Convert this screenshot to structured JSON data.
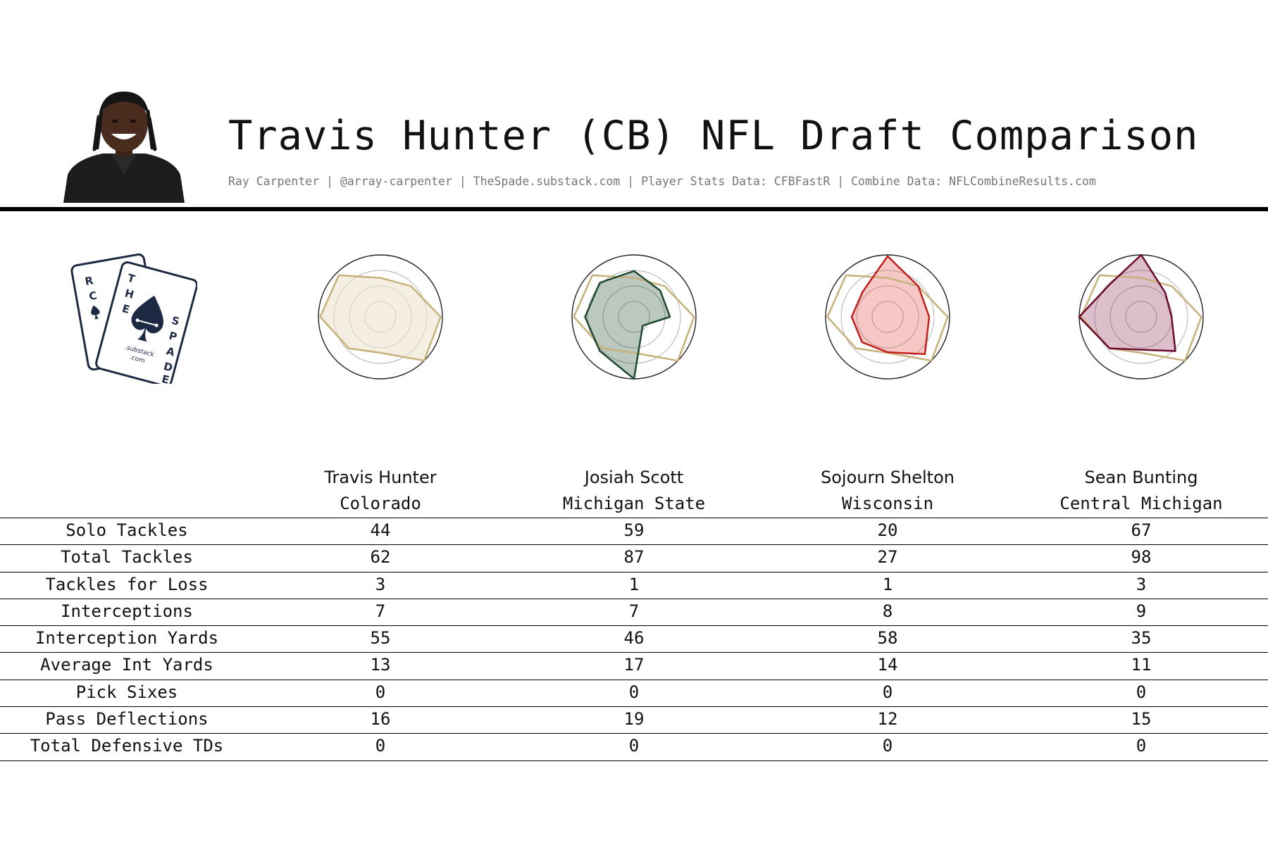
{
  "header": {
    "title": "Travis Hunter (CB) NFL Draft Comparison",
    "subtitle": "Ray Carpenter | @array-carpenter | TheSpade.substack.com | Player Stats Data: CFBFastR | Combine Data: NFLCombineResults.com"
  },
  "logo": {
    "letters_left": [
      "R",
      "C",
      "E"
    ],
    "letters_right": [
      "T",
      "H",
      "E",
      "S",
      "P",
      "A",
      "D",
      "E"
    ],
    "site_line1": ".substack",
    "site_line2": ".com"
  },
  "colors": {
    "base": "#c8b07a",
    "players": [
      "#c8b07a",
      "#1f4a2f",
      "#c41e1e",
      "#6b0a2e"
    ],
    "fills": [
      "#ede4cf",
      "#1f4a2f",
      "#e04a3f",
      "#8a2a4e"
    ]
  },
  "chart_data": {
    "type": "table",
    "columns": [
      {
        "name": "Travis Hunter",
        "school": "Colorado"
      },
      {
        "name": "Josiah Scott",
        "school": "Michigan State"
      },
      {
        "name": "Sojourn Shelton",
        "school": "Wisconsin"
      },
      {
        "name": "Sean Bunting",
        "school": "Central Michigan"
      }
    ],
    "rows": [
      {
        "label": "Solo Tackles",
        "values": [
          "44",
          "59",
          "20",
          "67"
        ]
      },
      {
        "label": "Total Tackles",
        "values": [
          "62",
          "87",
          "27",
          "98"
        ]
      },
      {
        "label": "Tackles for Loss",
        "values": [
          "3",
          "1",
          "1",
          "3"
        ]
      },
      {
        "label": "Interceptions",
        "values": [
          "7",
          "7",
          "8",
          "9"
        ]
      },
      {
        "label": "Interception Yards",
        "values": [
          "55",
          "46",
          "58",
          "35"
        ]
      },
      {
        "label": "Average Int Yards",
        "values": [
          "13",
          "17",
          "14",
          "11"
        ]
      },
      {
        "label": "Pick Sixes",
        "values": [
          "0",
          "0",
          "0",
          "0"
        ]
      },
      {
        "label": "Pass Deflections",
        "values": [
          "16",
          "19",
          "12",
          "15"
        ]
      },
      {
        "label": "Total Defensive TDs",
        "values": [
          "0",
          "0",
          "0",
          "0"
        ]
      }
    ],
    "radar": {
      "type": "radar",
      "rlim": [
        0,
        1
      ],
      "rings": [
        0.25,
        0.5,
        0.75,
        1.0
      ],
      "base_series": [
        0.63,
        0.95,
        0.97,
        0.72,
        0.58,
        1.0,
        0.97,
        0.7
      ],
      "series": [
        [
          0.63,
          0.95,
          0.97,
          0.72,
          0.58,
          1.0,
          0.97,
          0.7
        ],
        [
          0.74,
          0.78,
          0.79,
          0.78,
          1.0,
          0.2,
          0.58,
          0.6
        ],
        [
          0.98,
          0.57,
          0.58,
          0.58,
          0.57,
          0.85,
          0.67,
          0.7
        ],
        [
          1.0,
          0.73,
          1.0,
          0.72,
          0.53,
          0.78,
          0.49,
          0.55
        ]
      ]
    }
  }
}
